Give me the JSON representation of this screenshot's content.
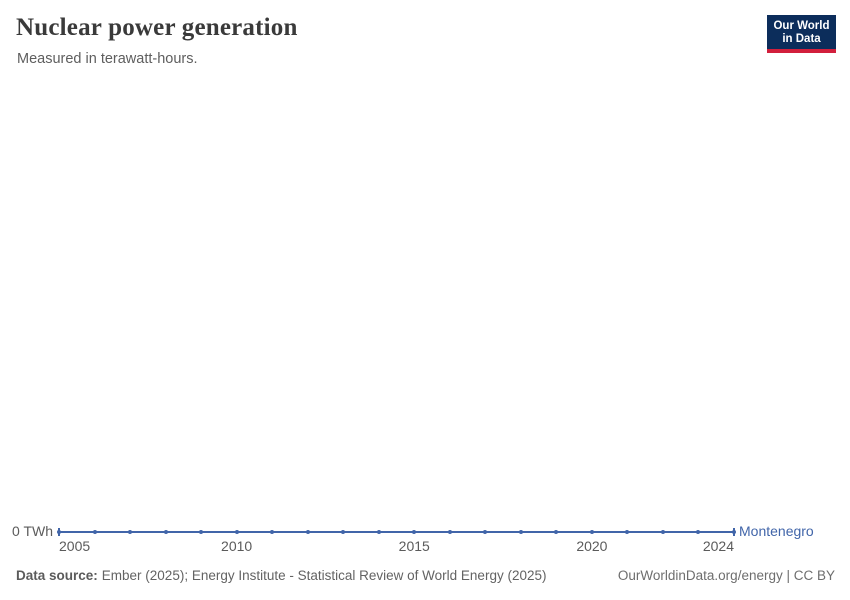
{
  "header": {
    "title": "Nuclear power generation",
    "subtitle": "Measured in terawatt-hours.",
    "logo": {
      "line1": "Our World",
      "line2": "in Data"
    }
  },
  "colors": {
    "series_blue": "#4165A9",
    "logo_background": "#0C2D5B",
    "logo_red_strip": "#D21F3C",
    "title_text": "#3a3a3a",
    "axis_text": "#5b5b5b"
  },
  "chart_data": {
    "type": "line",
    "title": "Nuclear power generation",
    "subtitle": "Measured in terawatt-hours.",
    "unit": "TWh",
    "grid": false,
    "legend_position": "end-of-line",
    "x": [
      2005,
      2006,
      2007,
      2008,
      2009,
      2010,
      2011,
      2012,
      2013,
      2014,
      2015,
      2016,
      2017,
      2018,
      2019,
      2020,
      2021,
      2022,
      2023,
      2024
    ],
    "x_ticks": [
      2005,
      2010,
      2015,
      2020,
      2024
    ],
    "xlabel": "",
    "ylabel": "",
    "y_zero_label": "0 TWh",
    "ylim": [
      0,
      0
    ],
    "series": [
      {
        "name": "Montenegro",
        "color": "#4165A9",
        "values": [
          0,
          0,
          0,
          0,
          0,
          0,
          0,
          0,
          0,
          0,
          0,
          0,
          0,
          0,
          0,
          0,
          0,
          0,
          0,
          0
        ]
      }
    ]
  },
  "footer": {
    "source_label": "Data source:",
    "source_text": "Ember (2025); Energy Institute - Statistical Review of World Energy (2025)",
    "rights": "OurWorldinData.org/energy | CC BY"
  }
}
